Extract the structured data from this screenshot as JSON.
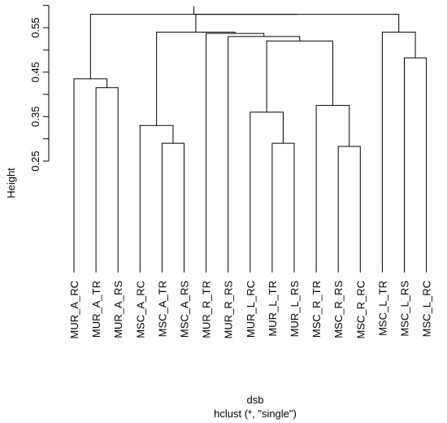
{
  "chart_data": {
    "type": "dendrogram",
    "xlabel": "dsb",
    "sublabel": "hclust (*, \"single\")",
    "ylabel": "Height",
    "yticks": [
      0.25,
      0.35,
      0.45,
      0.55
    ],
    "tick_labels": [
      "0.25",
      "0.35",
      "0.45",
      "0.55"
    ],
    "leaves": [
      "MUR_A_RC",
      "MUR_A_TR",
      "MUR_A_RS",
      "MSC_A_RC",
      "MSC_A_TR",
      "MSC_A_RS",
      "MUR_R_TR",
      "MUR_R_RS",
      "MUR_L_RC",
      "MUR_L_TR",
      "MUR_L_RS",
      "MSC_R_TR",
      "MSC_R_RS",
      "MSC_R_RC",
      "MSC_L_TR",
      "MSC_L_RS",
      "MSC_L_RC"
    ],
    "merges": [
      {
        "id": "c1",
        "left": "MUR_A_TR",
        "right": "MUR_A_RS",
        "height": 0.415
      },
      {
        "id": "c2",
        "left": "MUR_A_RC",
        "right": "c1",
        "height": 0.435
      },
      {
        "id": "c3",
        "left": "MSC_A_TR",
        "right": "MSC_A_RS",
        "height": 0.29
      },
      {
        "id": "c4",
        "left": "MSC_A_RC",
        "right": "c3",
        "height": 0.33
      },
      {
        "id": "c5",
        "left": "MUR_L_TR",
        "right": "MUR_L_RS",
        "height": 0.29
      },
      {
        "id": "c6",
        "left": "MUR_L_RC",
        "right": "c5",
        "height": 0.36
      },
      {
        "id": "c7",
        "left": "MSC_R_RS",
        "right": "MSC_R_RC",
        "height": 0.283
      },
      {
        "id": "c8",
        "left": "MSC_R_TR",
        "right": "c7",
        "height": 0.375
      },
      {
        "id": "c9",
        "left": "c6",
        "right": "c8",
        "height": 0.52
      },
      {
        "id": "c10",
        "left": "MUR_R_RS",
        "right": "c9",
        "height": 0.53
      },
      {
        "id": "c11",
        "left": "MUR_R_TR",
        "right": "c10",
        "height": 0.537
      },
      {
        "id": "c12",
        "left": "c4",
        "right": "c11",
        "height": 0.54
      },
      {
        "id": "c13",
        "left": "MSC_L_RS",
        "right": "MSC_L_RC",
        "height": 0.482
      },
      {
        "id": "c14",
        "left": "MSC_L_TR",
        "right": "c13",
        "height": 0.54
      },
      {
        "id": "c15",
        "left": "c12",
        "right": "c14",
        "height": 0.58
      },
      {
        "id": "c16",
        "left": "c2",
        "right": "c15",
        "height": 0.58
      }
    ]
  }
}
